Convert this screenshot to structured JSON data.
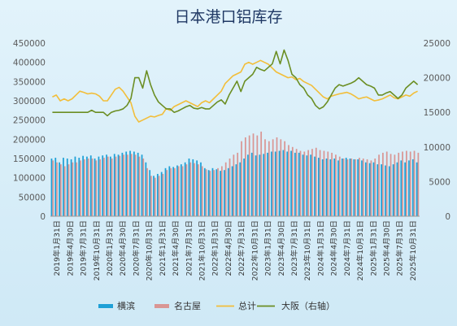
{
  "chart_data": {
    "type": "bar",
    "title": "日本港口铝库存",
    "x_labels": [
      "2019年1月31日",
      "2019年4月30日",
      "2019年7月31日",
      "2019年10月31日",
      "2020年1月31日",
      "2020年4月30日",
      "2020年7月31日",
      "2020年10月31日",
      "2021年1月31日",
      "2021年4月30日",
      "2021年7月31日",
      "2021年10月31日",
      "2022年1月31日",
      "2022年4月30日",
      "2022年7月31日",
      "2022年10月31日",
      "2023年1月31日",
      "2023年4月30日",
      "2023年7月31日",
      "2023年10月31日",
      "2024年1月31日",
      "2024年4月30日",
      "2024年7月31日",
      "2024年10月31日",
      "2025年1月31日",
      "2025年4月30日",
      "2025年7月31日",
      "2025年10月31日"
    ],
    "left_axis": {
      "min": 0,
      "max": 450000,
      "ticks": [
        "0",
        "50000",
        "100000",
        "150000",
        "200000",
        "250000",
        "300000",
        "350000",
        "400000",
        "450000"
      ]
    },
    "right_axis": {
      "label": "",
      "min": 0,
      "max": 25000,
      "ticks": [
        "0",
        "5000",
        "10000",
        "15000",
        "20000",
        "25000"
      ]
    },
    "legend_position": "bottom",
    "grid": false,
    "series": [
      {
        "name": "横滨",
        "kind": "bar",
        "axis": "left",
        "color": "#1ea0d6",
        "values": [
          150000,
          152000,
          140000,
          152000,
          150000,
          148000,
          155000,
          152000,
          157000,
          155000,
          158000,
          150000,
          155000,
          158000,
          160000,
          155000,
          162000,
          160000,
          165000,
          168000,
          170000,
          168000,
          165000,
          160000,
          140000,
          120000,
          105000,
          110000,
          115000,
          125000,
          130000,
          128000,
          132000,
          135000,
          140000,
          150000,
          148000,
          145000,
          140000,
          125000,
          120000,
          125000,
          122000,
          118000,
          120000,
          125000,
          130000,
          135000,
          140000,
          150000,
          160000,
          165000,
          158000,
          160000,
          162000,
          165000,
          168000,
          168000,
          170000,
          172000,
          168000,
          170000,
          165000,
          165000,
          160000,
          158000,
          160000,
          155000,
          152000,
          148000,
          150000,
          148000,
          150000,
          145000,
          150000,
          152000,
          150000,
          148000,
          148000,
          145000,
          140000,
          138000,
          140000,
          135000,
          135000,
          132000,
          130000,
          135000,
          140000,
          145000,
          140000,
          145000,
          148000,
          140000
        ]
      },
      {
        "name": "名古屋",
        "kind": "bar",
        "axis": "left",
        "color": "#d99694",
        "values": [
          145000,
          140000,
          135000,
          130000,
          135000,
          140000,
          140000,
          145000,
          148000,
          150000,
          150000,
          145000,
          148000,
          152000,
          155000,
          150000,
          155000,
          157000,
          160000,
          160000,
          162000,
          160000,
          155000,
          150000,
          125000,
          105000,
          100000,
          105000,
          110000,
          120000,
          125000,
          125000,
          130000,
          130000,
          135000,
          140000,
          138000,
          135000,
          130000,
          122000,
          118000,
          120000,
          125000,
          130000,
          140000,
          150000,
          160000,
          165000,
          195000,
          205000,
          210000,
          215000,
          210000,
          220000,
          200000,
          195000,
          200000,
          205000,
          200000,
          195000,
          185000,
          180000,
          175000,
          170000,
          168000,
          172000,
          175000,
          178000,
          172000,
          170000,
          168000,
          165000,
          160000,
          155000,
          150000,
          148000,
          150000,
          148000,
          152000,
          150000,
          148000,
          145000,
          150000,
          160000,
          165000,
          168000,
          162000,
          160000,
          165000,
          168000,
          170000,
          168000,
          170000,
          165000
        ]
      },
      {
        "name": "总计",
        "kind": "line",
        "axis": "left",
        "color": "#f2be3a",
        "values": [
          310000,
          315000,
          300000,
          305000,
          300000,
          305000,
          315000,
          325000,
          322000,
          318000,
          320000,
          318000,
          312000,
          300000,
          300000,
          315000,
          330000,
          335000,
          325000,
          310000,
          295000,
          260000,
          245000,
          250000,
          255000,
          260000,
          258000,
          262000,
          265000,
          280000,
          275000,
          285000,
          290000,
          295000,
          300000,
          295000,
          290000,
          285000,
          295000,
          300000,
          295000,
          305000,
          315000,
          325000,
          345000,
          355000,
          365000,
          370000,
          375000,
          395000,
          400000,
          395000,
          400000,
          405000,
          400000,
          395000,
          385000,
          375000,
          370000,
          365000,
          360000,
          362000,
          355000,
          358000,
          350000,
          345000,
          340000,
          330000,
          320000,
          310000,
          305000,
          312000,
          315000,
          318000,
          320000,
          322000,
          318000,
          312000,
          305000,
          308000,
          310000,
          305000,
          300000,
          302000,
          305000,
          310000,
          315000,
          308000,
          305000,
          310000,
          315000,
          312000,
          320000,
          325000
        ]
      },
      {
        "name": "大阪（右轴）",
        "kind": "line",
        "axis": "right",
        "color": "#6b8e23",
        "values": [
          15000,
          15000,
          15000,
          15000,
          15000,
          15000,
          15000,
          15000,
          15000,
          15000,
          15300,
          15000,
          15000,
          15000,
          14500,
          15000,
          15200,
          15300,
          15500,
          16000,
          17000,
          20000,
          20000,
          18500,
          21000,
          19000,
          17500,
          16500,
          16000,
          15500,
          15500,
          15000,
          15200,
          15500,
          15800,
          16000,
          15600,
          15500,
          15700,
          15500,
          15500,
          16000,
          16500,
          16800,
          16200,
          17500,
          18500,
          19500,
          18000,
          19500,
          20000,
          20500,
          21500,
          21200,
          21000,
          21500,
          22000,
          23800,
          22000,
          24000,
          22500,
          20500,
          20000,
          19000,
          18500,
          17500,
          17000,
          16000,
          15500,
          15800,
          16500,
          17500,
          18500,
          19000,
          18800,
          19000,
          19200,
          19500,
          20000,
          19500,
          19000,
          18800,
          18500,
          17500,
          17500,
          17800,
          18000,
          17500,
          17000,
          17500,
          18500,
          19000,
          19500,
          19000
        ]
      }
    ]
  }
}
